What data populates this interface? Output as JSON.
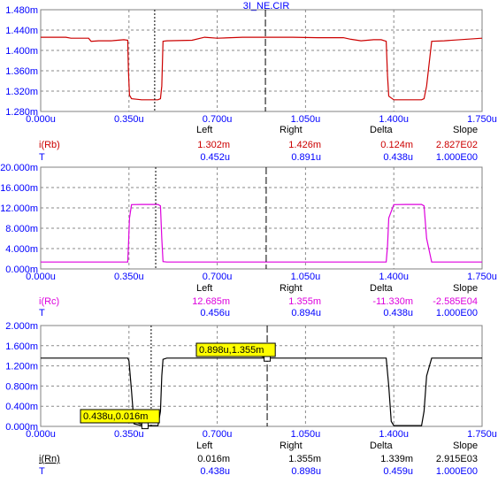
{
  "window_title": "3I_NE.CIR",
  "colors": {
    "frame": "#808080",
    "grid": "#8a8a8a",
    "axis_text": "#0000ff",
    "highlight": "#ffff00"
  },
  "chart_data": [
    {
      "type": "line",
      "title": "3I_NE.CIR",
      "x_ticks": [
        "0.000u",
        "0.350u",
        "0.700u",
        "1.050u",
        "1.400u",
        "1.750u"
      ],
      "y_ticks": [
        "1.280m",
        "1.320m",
        "1.360m",
        "1.400m",
        "1.440m",
        "1.480m"
      ],
      "xlim": [
        0,
        1.75
      ],
      "ylim": [
        1.28,
        1.48
      ],
      "grid": true,
      "cursors": {
        "left": 0.452,
        "right": 0.891
      },
      "series": [
        {
          "name": "i(Rb)",
          "color": "#cc0000",
          "x": [
            0,
            0.1,
            0.12,
            0.19,
            0.2,
            0.23,
            0.28,
            0.33,
            0.345,
            0.348,
            0.352,
            0.36,
            0.4,
            0.45,
            0.465,
            0.475,
            0.48,
            0.485,
            0.5,
            0.6,
            0.65,
            0.7,
            0.8,
            0.9,
            0.95,
            1.0,
            1.1,
            1.2,
            1.23,
            1.27,
            1.32,
            1.35,
            1.37,
            1.375,
            1.38,
            1.4,
            1.45,
            1.5,
            1.51,
            1.52,
            1.53,
            1.55,
            1.6,
            1.75
          ],
          "y": [
            1.426,
            1.426,
            1.424,
            1.424,
            1.418,
            1.419,
            1.419,
            1.421,
            1.42,
            1.36,
            1.312,
            1.305,
            1.303,
            1.303,
            1.303,
            1.305,
            1.33,
            1.418,
            1.419,
            1.42,
            1.426,
            1.424,
            1.426,
            1.426,
            1.426,
            1.426,
            1.425,
            1.425,
            1.422,
            1.419,
            1.421,
            1.421,
            1.418,
            1.35,
            1.31,
            1.303,
            1.303,
            1.303,
            1.303,
            1.305,
            1.33,
            1.418,
            1.419,
            1.424
          ]
        }
      ],
      "readout": {
        "headers": [
          "Left",
          "Right",
          "Delta",
          "Slope"
        ],
        "rows": [
          {
            "label": "i(Rb)",
            "color": "#cc0000",
            "values": [
              "1.302m",
              "1.426m",
              "0.124m",
              "2.827E02"
            ]
          },
          {
            "label": "T",
            "color": "#0000ff",
            "values": [
              "0.452u",
              "0.891u",
              "0.438u",
              "1.000E00"
            ]
          }
        ]
      }
    },
    {
      "type": "line",
      "x_ticks": [
        "0.000u",
        "0.350u",
        "0.700u",
        "1.050u",
        "1.400u",
        "1.750u"
      ],
      "y_ticks": [
        "0.000m",
        "4.000m",
        "8.000m",
        "12.000m",
        "16.000m",
        "20.000m"
      ],
      "xlim": [
        0,
        1.75
      ],
      "ylim": [
        0,
        20
      ],
      "grid": true,
      "cursors": {
        "left": 0.456,
        "right": 0.894
      },
      "series": [
        {
          "name": "i(Rc)",
          "color": "#dd00dd",
          "x": [
            0,
            0.345,
            0.348,
            0.352,
            0.36,
            0.4,
            0.45,
            0.465,
            0.475,
            0.48,
            0.485,
            0.5,
            1.35,
            1.37,
            1.375,
            1.38,
            1.4,
            1.45,
            1.51,
            1.52,
            1.53,
            1.55,
            1.75
          ],
          "y": [
            1.36,
            1.36,
            4.5,
            10.0,
            12.65,
            12.685,
            12.685,
            12.685,
            12.4,
            6.0,
            1.45,
            1.36,
            1.36,
            1.36,
            4.5,
            10.0,
            12.65,
            12.685,
            12.685,
            12.4,
            6.0,
            1.36,
            1.36
          ]
        }
      ],
      "readout": {
        "headers": [
          "Left",
          "Right",
          "Delta",
          "Slope"
        ],
        "rows": [
          {
            "label": "i(Rc)",
            "color": "#dd00dd",
            "values": [
              "12.685m",
              "1.355m",
              "-11.330m",
              "-2.585E04"
            ]
          },
          {
            "label": "T",
            "color": "#0000ff",
            "values": [
              "0.456u",
              "0.894u",
              "0.438u",
              "1.000E00"
            ]
          }
        ]
      }
    },
    {
      "type": "line",
      "x_ticks": [
        "0.000u",
        "0.350u",
        "0.700u",
        "1.050u",
        "1.400u",
        "1.750u"
      ],
      "y_ticks": [
        "0.000m",
        "0.400m",
        "0.800m",
        "1.200m",
        "1.600m",
        "2.000m"
      ],
      "xlim": [
        0,
        1.75
      ],
      "ylim": [
        0,
        2
      ],
      "grid": true,
      "cursors": {
        "left": 0.438,
        "right": 0.898
      },
      "series": [
        {
          "name": "i(Rn)",
          "color": "#000000",
          "x": [
            0,
            0.345,
            0.35,
            0.36,
            0.37,
            0.4,
            0.45,
            0.465,
            0.475,
            0.48,
            0.485,
            0.5,
            1.35,
            1.37,
            1.38,
            1.39,
            1.4,
            1.45,
            1.51,
            1.52,
            1.53,
            1.55,
            1.75
          ],
          "y": [
            1.355,
            1.355,
            1.3,
            0.7,
            0.05,
            0.016,
            0.016,
            0.016,
            0.3,
            1.0,
            1.33,
            1.355,
            1.355,
            1.355,
            0.8,
            0.1,
            0.016,
            0.016,
            0.016,
            0.3,
            1.0,
            1.355,
            1.355
          ]
        }
      ],
      "annotations": [
        "0.898u,1.355m",
        "0.438u,0.016m"
      ],
      "readout": {
        "headers": [
          "Left",
          "Right",
          "Delta",
          "Slope"
        ],
        "rows": [
          {
            "label": "i(Rn)",
            "color": "#000000",
            "values": [
              "0.016m",
              "1.355m",
              "1.339m",
              "2.915E03"
            ]
          },
          {
            "label": "T",
            "color": "#0000ff",
            "values": [
              "0.438u",
              "0.898u",
              "0.459u",
              "1.000E00"
            ]
          }
        ]
      }
    }
  ]
}
